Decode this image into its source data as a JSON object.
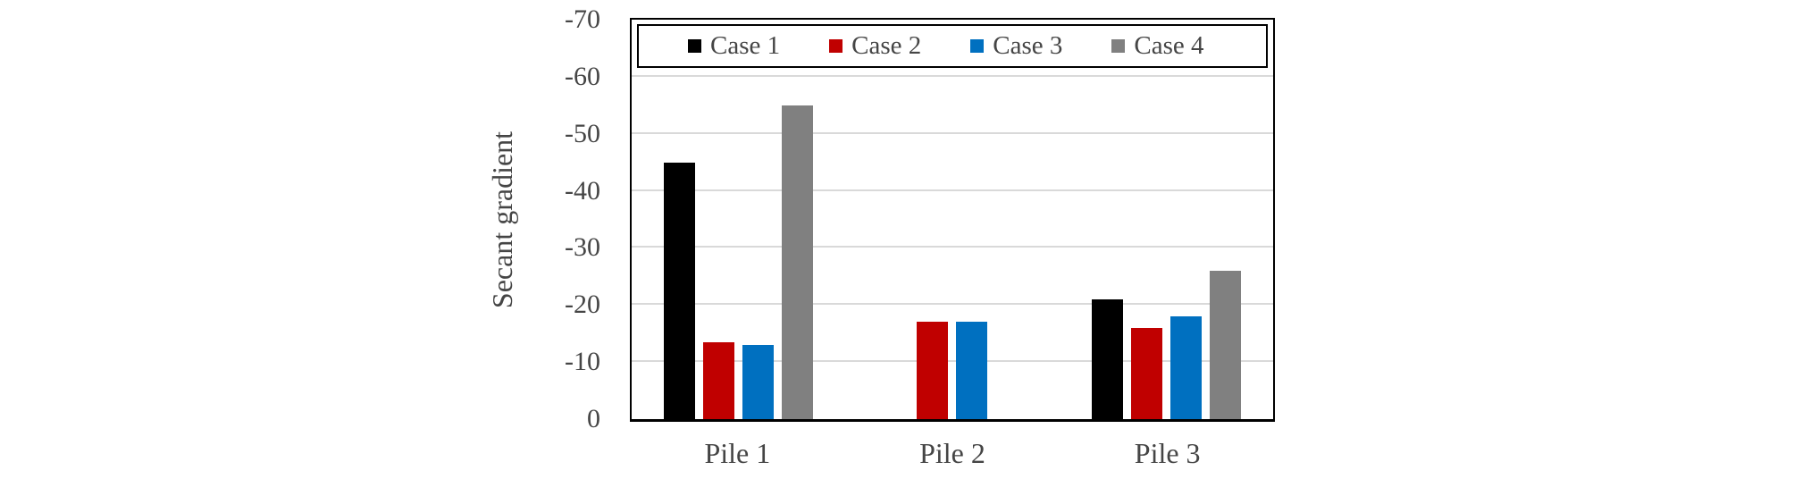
{
  "chart_data": {
    "type": "bar",
    "title": "",
    "xlabel": "",
    "ylabel": "Secant gradient",
    "categories": [
      "Pile 1",
      "Pile 2",
      "Pile 3"
    ],
    "series": [
      {
        "name": "Case 1",
        "color": "#000000",
        "values": [
          -45,
          0,
          -21
        ]
      },
      {
        "name": "Case 2",
        "color": "#c00000",
        "values": [
          -13.5,
          -17,
          -16
        ]
      },
      {
        "name": "Case 3",
        "color": "#0070c0",
        "values": [
          -13,
          -17,
          -18
        ]
      },
      {
        "name": "Case 4",
        "color": "#808080",
        "values": [
          -55,
          0,
          -26
        ]
      }
    ],
    "y_axis": {
      "ticks": [
        0,
        -10,
        -20,
        -30,
        -40,
        -50,
        -60,
        -70
      ],
      "min": 0,
      "max": -70,
      "inverted": true,
      "grid": true,
      "gridline_color": "#d9d9d9"
    },
    "legend": {
      "position": "top-inside",
      "border_color": "#000000",
      "entries": [
        "Case 1",
        "Case 2",
        "Case 3",
        "Case 4"
      ]
    },
    "text_color": "#454545"
  }
}
